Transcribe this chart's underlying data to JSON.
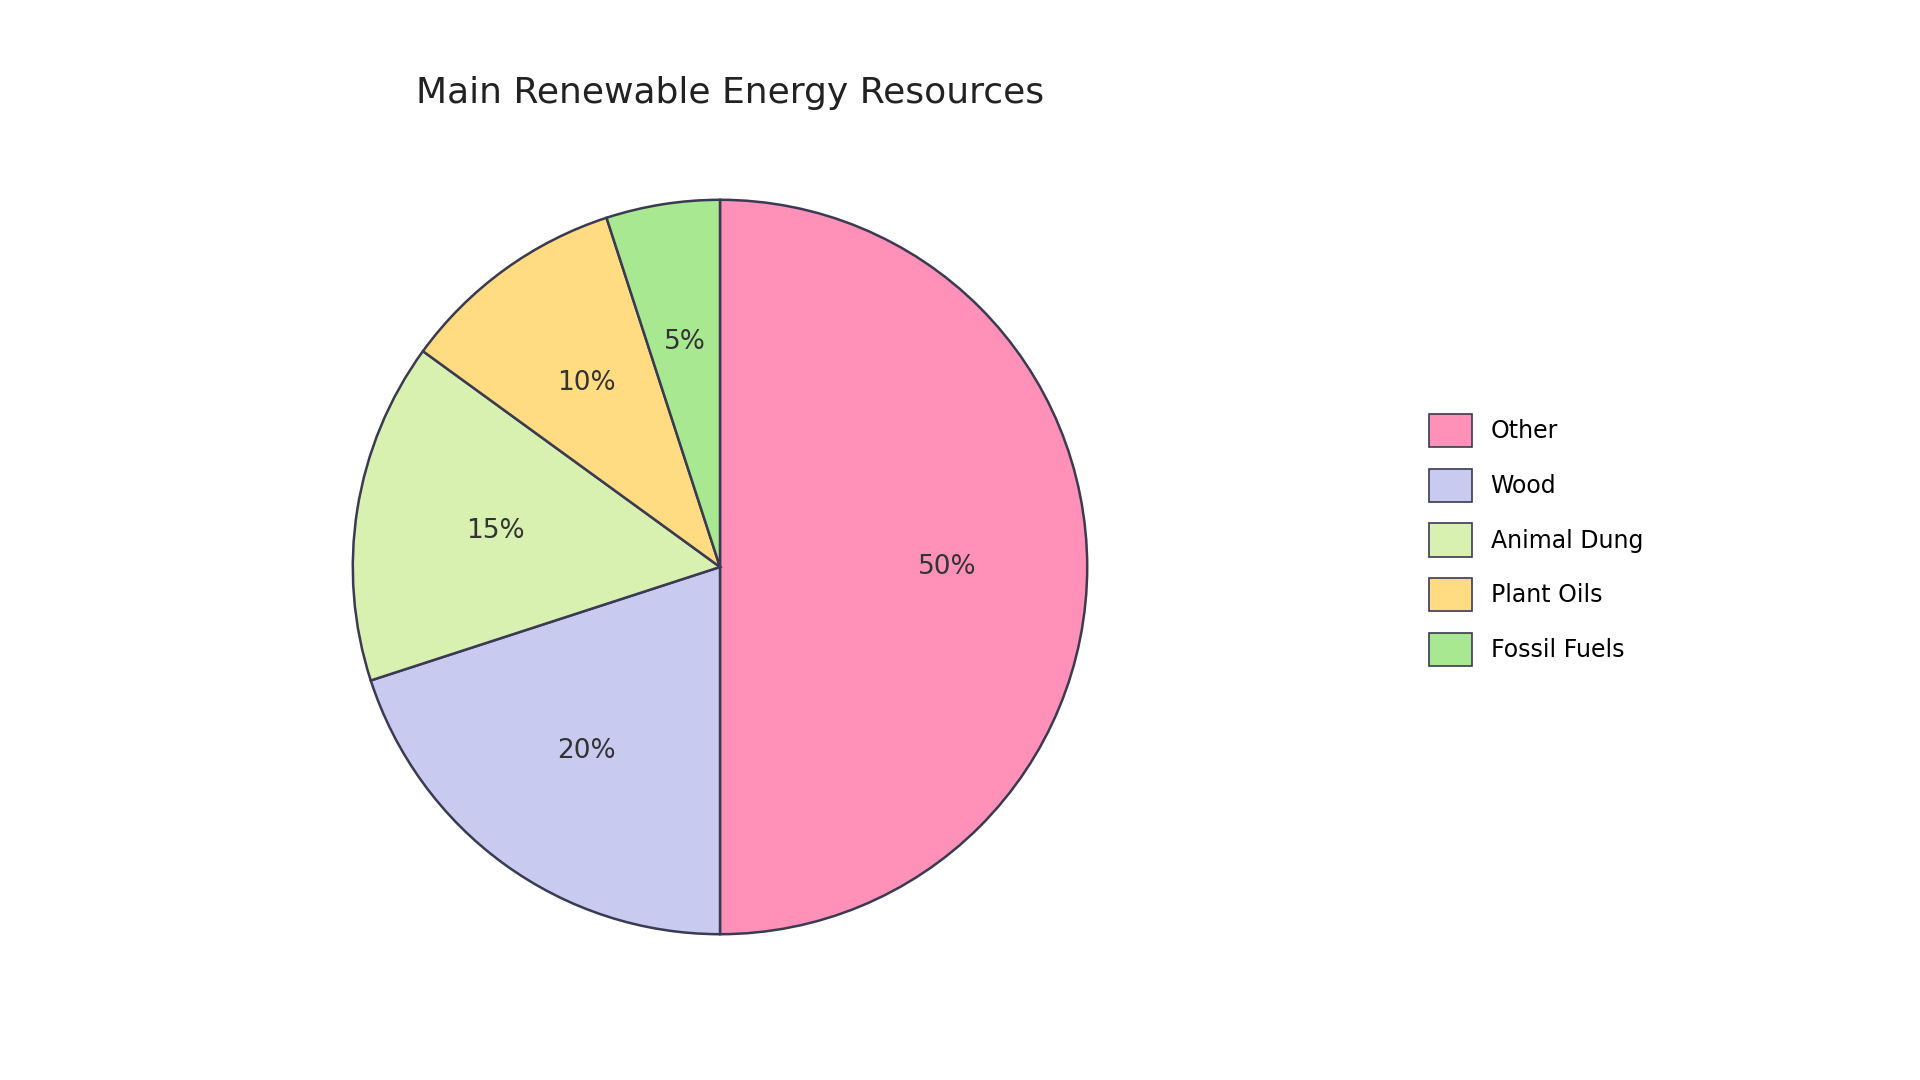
{
  "title": "Main Renewable Energy Resources",
  "title_fontsize": 26,
  "labels": [
    "Other",
    "Wood",
    "Animal Dung",
    "Plant Oils",
    "Fossil Fuels"
  ],
  "values": [
    50,
    20,
    15,
    10,
    5
  ],
  "colors": [
    "#FF91B8",
    "#C8CAF0",
    "#D8F0B0",
    "#FFDC82",
    "#A8E890"
  ],
  "pct_labels": [
    "50%",
    "20%",
    "15%",
    "10%",
    "5%"
  ],
  "edge_color": "#3a3a52",
  "edge_width": 1.8,
  "background_color": "#ffffff",
  "legend_fontsize": 17,
  "pct_fontsize": 19,
  "startangle": 90
}
